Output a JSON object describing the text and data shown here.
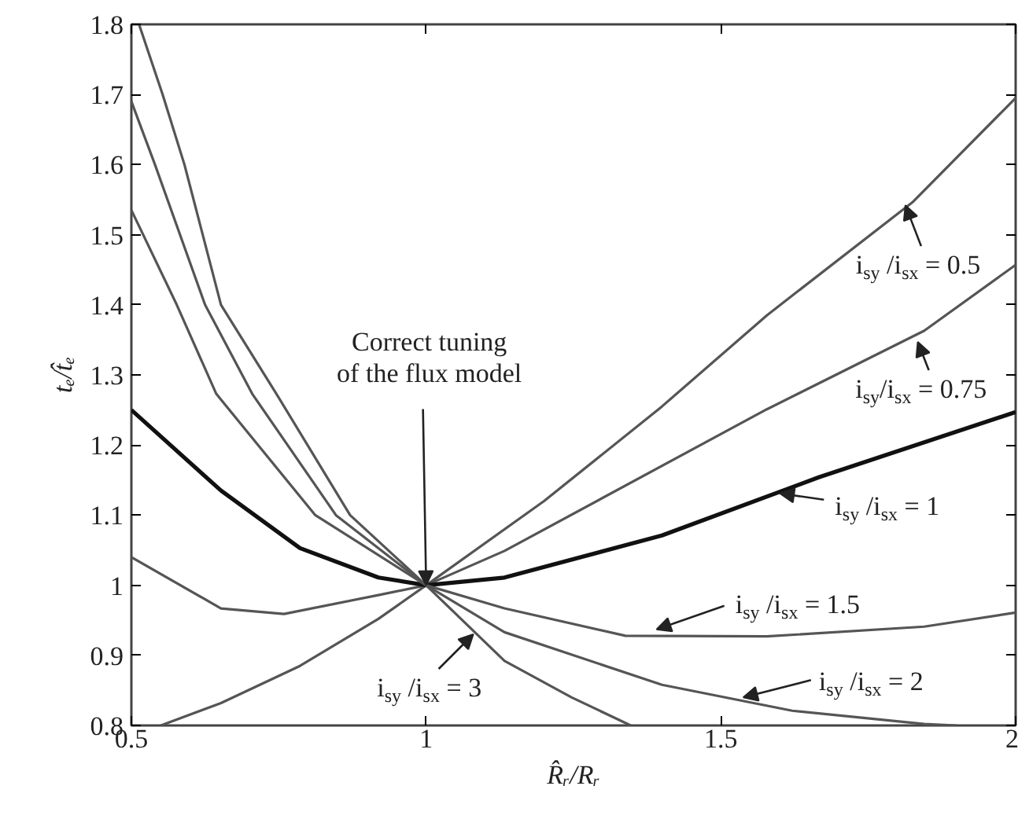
{
  "chart_data": {
    "type": "line",
    "xlabel": "R̂ᵣ/Rᵣ",
    "ylabel": "tₑ/t̂ₑ",
    "xlim": [
      0.5,
      2
    ],
    "ylim": [
      0.8,
      1.8
    ],
    "xticks": [
      0.5,
      1,
      1.5,
      2
    ],
    "yticks": [
      0.8,
      0.9,
      1,
      1.1,
      1.2,
      1.3,
      1.4,
      1.5,
      1.6,
      1.7,
      1.8
    ],
    "grid": false,
    "marker": "none",
    "line_style": "solid",
    "series": [
      {
        "color": "#555555",
        "x": [
          0.55,
          0.652,
          0.786,
          0.919,
          1,
          1.2,
          1.4,
          1.578,
          1.826,
          2
        ],
        "values": [
          0.8,
          0.832,
          0.885,
          0.952,
          1,
          1.12,
          1.255,
          1.385,
          1.547,
          1.695
        ]
      },
      {
        "color": "#555555",
        "x": [
          0.5,
          0.652,
          0.759,
          0.919,
          1,
          1.133,
          1.578,
          1.845,
          2
        ],
        "values": [
          1.04,
          0.967,
          0.959,
          0.986,
          1,
          1.049,
          1.251,
          1.363,
          1.457
        ]
      },
      {
        "color": "#111111",
        "x": [
          0.5,
          0.652,
          0.786,
          0.919,
          1,
          1.133,
          1.4,
          1.666,
          2
        ],
        "values": [
          1.25,
          1.135,
          1.053,
          1.011,
          1,
          1.011,
          1.071,
          1.154,
          1.247
        ]
      },
      {
        "color": "#555555",
        "x": [
          0.5,
          0.577,
          0.644,
          0.812,
          1,
          1.133,
          1.338,
          1.578,
          1.845,
          2
        ],
        "values": [
          1.535,
          1.4,
          1.273,
          1.1,
          1,
          0.967,
          0.928,
          0.927,
          0.941,
          0.961
        ]
      },
      {
        "color": "#555555",
        "x": [
          0.5,
          0.54,
          0.625,
          0.705,
          0.847,
          1,
          1.133,
          1.4,
          1.621,
          1.845,
          1.9
        ],
        "values": [
          1.69,
          1.6,
          1.4,
          1.273,
          1.1,
          1,
          0.933,
          0.858,
          0.821,
          0.802,
          0.8
        ]
      },
      {
        "color": "#555555",
        "x": [
          0.513,
          0.553,
          0.59,
          0.652,
          0.746,
          0.871,
          1,
          1.133,
          1.247,
          1.347
        ],
        "values": [
          1.8,
          1.7,
          1.6,
          1.4,
          1.273,
          1.1,
          1,
          0.892,
          0.84,
          0.8
        ]
      }
    ],
    "annotations": [
      {
        "text": "i$_{sy}$ /i$_{sx}$ = 0.5",
        "x": 1.813,
        "y": 1.542
      },
      {
        "text": "i$_{sy}$/i$_{sx}$ = 0.75",
        "x": 1.834,
        "y": 1.347
      },
      {
        "text": "i$_{sy}$ /i$_{sx}$ = 1",
        "x": 1.6,
        "y": 1.131
      },
      {
        "text": "i$_{sy}$ /i$_{sx}$ = 1.5",
        "x": 1.391,
        "y": 0.937
      },
      {
        "text": "i$_{sy}$ /i$_{sx}$ = 2",
        "x": 1.538,
        "y": 0.84
      },
      {
        "text": "i$_{sy}$ /i$_{sx}$ = 3",
        "x": 1.08,
        "y": 0.93
      },
      {
        "text": "Correct tuning\nof the flux model",
        "x": 1,
        "y": 1
      }
    ]
  }
}
